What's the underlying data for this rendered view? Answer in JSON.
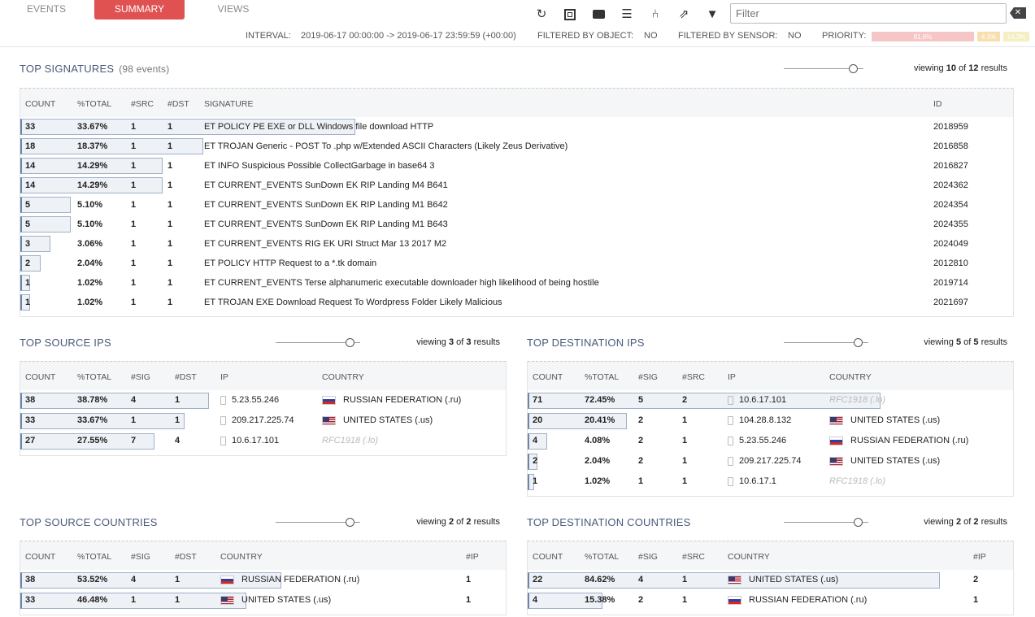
{
  "tabs": {
    "events": "EVENTS",
    "summary": "SUMMARY",
    "views": "VIEWS"
  },
  "toolbar": {
    "icons": [
      "refresh-icon",
      "fullscreen-icon",
      "comment-icon",
      "list-icon",
      "share-icon",
      "external-link-icon",
      "filter-icon"
    ],
    "filter_placeholder": "Filter",
    "clear_label": "✕"
  },
  "meta": {
    "interval_label": "INTERVAL:",
    "interval_value": "2019-06-17 00:00:00 -> 2019-06-17 23:59:59 (+00:00)",
    "object_label": "FILTERED BY OBJECT:",
    "object_value": "NO",
    "sensor_label": "FILTERED BY SENSOR:",
    "sensor_value": "NO",
    "priority_label": "PRIORITY:",
    "priority": [
      {
        "label": "81.6%",
        "color": "#f6c5c5"
      },
      {
        "label": "4.1%",
        "color": "#f8dfb0"
      },
      {
        "label": "14.3%",
        "color": "#f4eec0"
      }
    ]
  },
  "signatures": {
    "title": "TOP SIGNATURES",
    "count": "(98 events)",
    "viewing_pre": "viewing",
    "shown": "10",
    "of": "of",
    "total": "12",
    "results": "results",
    "headers": [
      "COUNT",
      "%TOTAL",
      "#SRC",
      "#DST",
      "SIGNATURE",
      "ID"
    ],
    "rows": [
      {
        "count": "33",
        "pct": "33.67%",
        "frac": 0.3367,
        "src": "1",
        "dst": "1",
        "sig": "ET POLICY PE EXE or DLL Windows file download HTTP",
        "id": "2018959"
      },
      {
        "count": "18",
        "pct": "18.37%",
        "frac": 0.1837,
        "src": "1",
        "dst": "1",
        "sig": "ET TROJAN Generic - POST To .php w/Extended ASCII Characters (Likely Zeus Derivative)",
        "id": "2016858"
      },
      {
        "count": "14",
        "pct": "14.29%",
        "frac": 0.1429,
        "src": "1",
        "dst": "1",
        "sig": "ET INFO Suspicious Possible CollectGarbage in base64 3",
        "id": "2016827"
      },
      {
        "count": "14",
        "pct": "14.29%",
        "frac": 0.1429,
        "src": "1",
        "dst": "1",
        "sig": "ET CURRENT_EVENTS SunDown EK RIP Landing M4 B641",
        "id": "2024362"
      },
      {
        "count": "5",
        "pct": "5.10%",
        "frac": 0.051,
        "src": "1",
        "dst": "1",
        "sig": "ET CURRENT_EVENTS SunDown EK RIP Landing M1 B642",
        "id": "2024354"
      },
      {
        "count": "5",
        "pct": "5.10%",
        "frac": 0.051,
        "src": "1",
        "dst": "1",
        "sig": "ET CURRENT_EVENTS SunDown EK RIP Landing M1 B643",
        "id": "2024355"
      },
      {
        "count": "3",
        "pct": "3.06%",
        "frac": 0.0306,
        "src": "1",
        "dst": "1",
        "sig": "ET CURRENT_EVENTS RIG EK URI Struct Mar 13 2017 M2",
        "id": "2024049"
      },
      {
        "count": "2",
        "pct": "2.04%",
        "frac": 0.0204,
        "src": "1",
        "dst": "1",
        "sig": "ET POLICY HTTP Request to a *.tk domain",
        "id": "2012810"
      },
      {
        "count": "1",
        "pct": "1.02%",
        "frac": 0.0102,
        "src": "1",
        "dst": "1",
        "sig": "ET CURRENT_EVENTS Terse alphanumeric executable downloader high likelihood of being hostile",
        "id": "2019714"
      },
      {
        "count": "1",
        "pct": "1.02%",
        "frac": 0.0102,
        "src": "1",
        "dst": "1",
        "sig": "ET TROJAN EXE Download Request To Wordpress Folder Likely Malicious",
        "id": "2021697"
      }
    ]
  },
  "src_ips": {
    "title": "TOP SOURCE IPS",
    "viewing_pre": "viewing",
    "shown": "3",
    "of": "of",
    "total": "3",
    "results": "results",
    "headers": [
      "COUNT",
      "%TOTAL",
      "#SIG",
      "#DST",
      "IP",
      "COUNTRY"
    ],
    "rows": [
      {
        "count": "38",
        "pct": "38.78%",
        "frac": 0.3878,
        "a": "4",
        "b": "1",
        "ip": "5.23.55.246",
        "flag": "ru",
        "country": "RUSSIAN FEDERATION (.ru)"
      },
      {
        "count": "33",
        "pct": "33.67%",
        "frac": 0.3367,
        "a": "1",
        "b": "1",
        "ip": "209.217.225.74",
        "flag": "us",
        "country": "UNITED STATES (.us)"
      },
      {
        "count": "27",
        "pct": "27.55%",
        "frac": 0.2755,
        "a": "7",
        "b": "4",
        "ip": "10.6.17.101",
        "flag": "",
        "country": "RFC1918 (.lo)"
      }
    ]
  },
  "dst_ips": {
    "title": "TOP DESTINATION IPS",
    "viewing_pre": "viewing",
    "shown": "5",
    "of": "of",
    "total": "5",
    "results": "results",
    "headers": [
      "COUNT",
      "%TOTAL",
      "#SIG",
      "#SRC",
      "IP",
      "COUNTRY"
    ],
    "rows": [
      {
        "count": "71",
        "pct": "72.45%",
        "frac": 0.7245,
        "a": "5",
        "b": "2",
        "ip": "10.6.17.101",
        "flag": "",
        "country": "RFC1918 (.lo)"
      },
      {
        "count": "20",
        "pct": "20.41%",
        "frac": 0.2041,
        "a": "2",
        "b": "1",
        "ip": "104.28.8.132",
        "flag": "us",
        "country": "UNITED STATES (.us)"
      },
      {
        "count": "4",
        "pct": "4.08%",
        "frac": 0.0408,
        "a": "2",
        "b": "1",
        "ip": "5.23.55.246",
        "flag": "ru",
        "country": "RUSSIAN FEDERATION (.ru)"
      },
      {
        "count": "2",
        "pct": "2.04%",
        "frac": 0.0204,
        "a": "2",
        "b": "1",
        "ip": "209.217.225.74",
        "flag": "us",
        "country": "UNITED STATES (.us)"
      },
      {
        "count": "1",
        "pct": "1.02%",
        "frac": 0.0102,
        "a": "1",
        "b": "1",
        "ip": "10.6.17.1",
        "flag": "",
        "country": "RFC1918 (.lo)"
      }
    ]
  },
  "src_countries": {
    "title": "TOP SOURCE COUNTRIES",
    "viewing_pre": "viewing",
    "shown": "2",
    "of": "of",
    "total": "2",
    "results": "results",
    "headers": [
      "COUNT",
      "%TOTAL",
      "#SIG",
      "#DST",
      "COUNTRY",
      "#IP"
    ],
    "rows": [
      {
        "count": "38",
        "pct": "53.52%",
        "frac": 0.5352,
        "a": "4",
        "b": "1",
        "flag": "ru",
        "country": "RUSSIAN FEDERATION (.ru)",
        "ip": "1"
      },
      {
        "count": "33",
        "pct": "46.48%",
        "frac": 0.4648,
        "a": "1",
        "b": "1",
        "flag": "us",
        "country": "UNITED STATES (.us)",
        "ip": "1"
      }
    ]
  },
  "dst_countries": {
    "title": "TOP DESTINATION COUNTRIES",
    "viewing_pre": "viewing",
    "shown": "2",
    "of": "of",
    "total": "2",
    "results": "results",
    "headers": [
      "COUNT",
      "%TOTAL",
      "#SIG",
      "#SRC",
      "COUNTRY",
      "#IP"
    ],
    "rows": [
      {
        "count": "22",
        "pct": "84.62%",
        "frac": 0.8462,
        "a": "4",
        "b": "1",
        "flag": "us",
        "country": "UNITED STATES (.us)",
        "ip": "2"
      },
      {
        "count": "4",
        "pct": "15.38%",
        "frac": 0.1538,
        "a": "2",
        "b": "1",
        "flag": "ru",
        "country": "RUSSIAN FEDERATION (.ru)",
        "ip": "1"
      }
    ]
  }
}
